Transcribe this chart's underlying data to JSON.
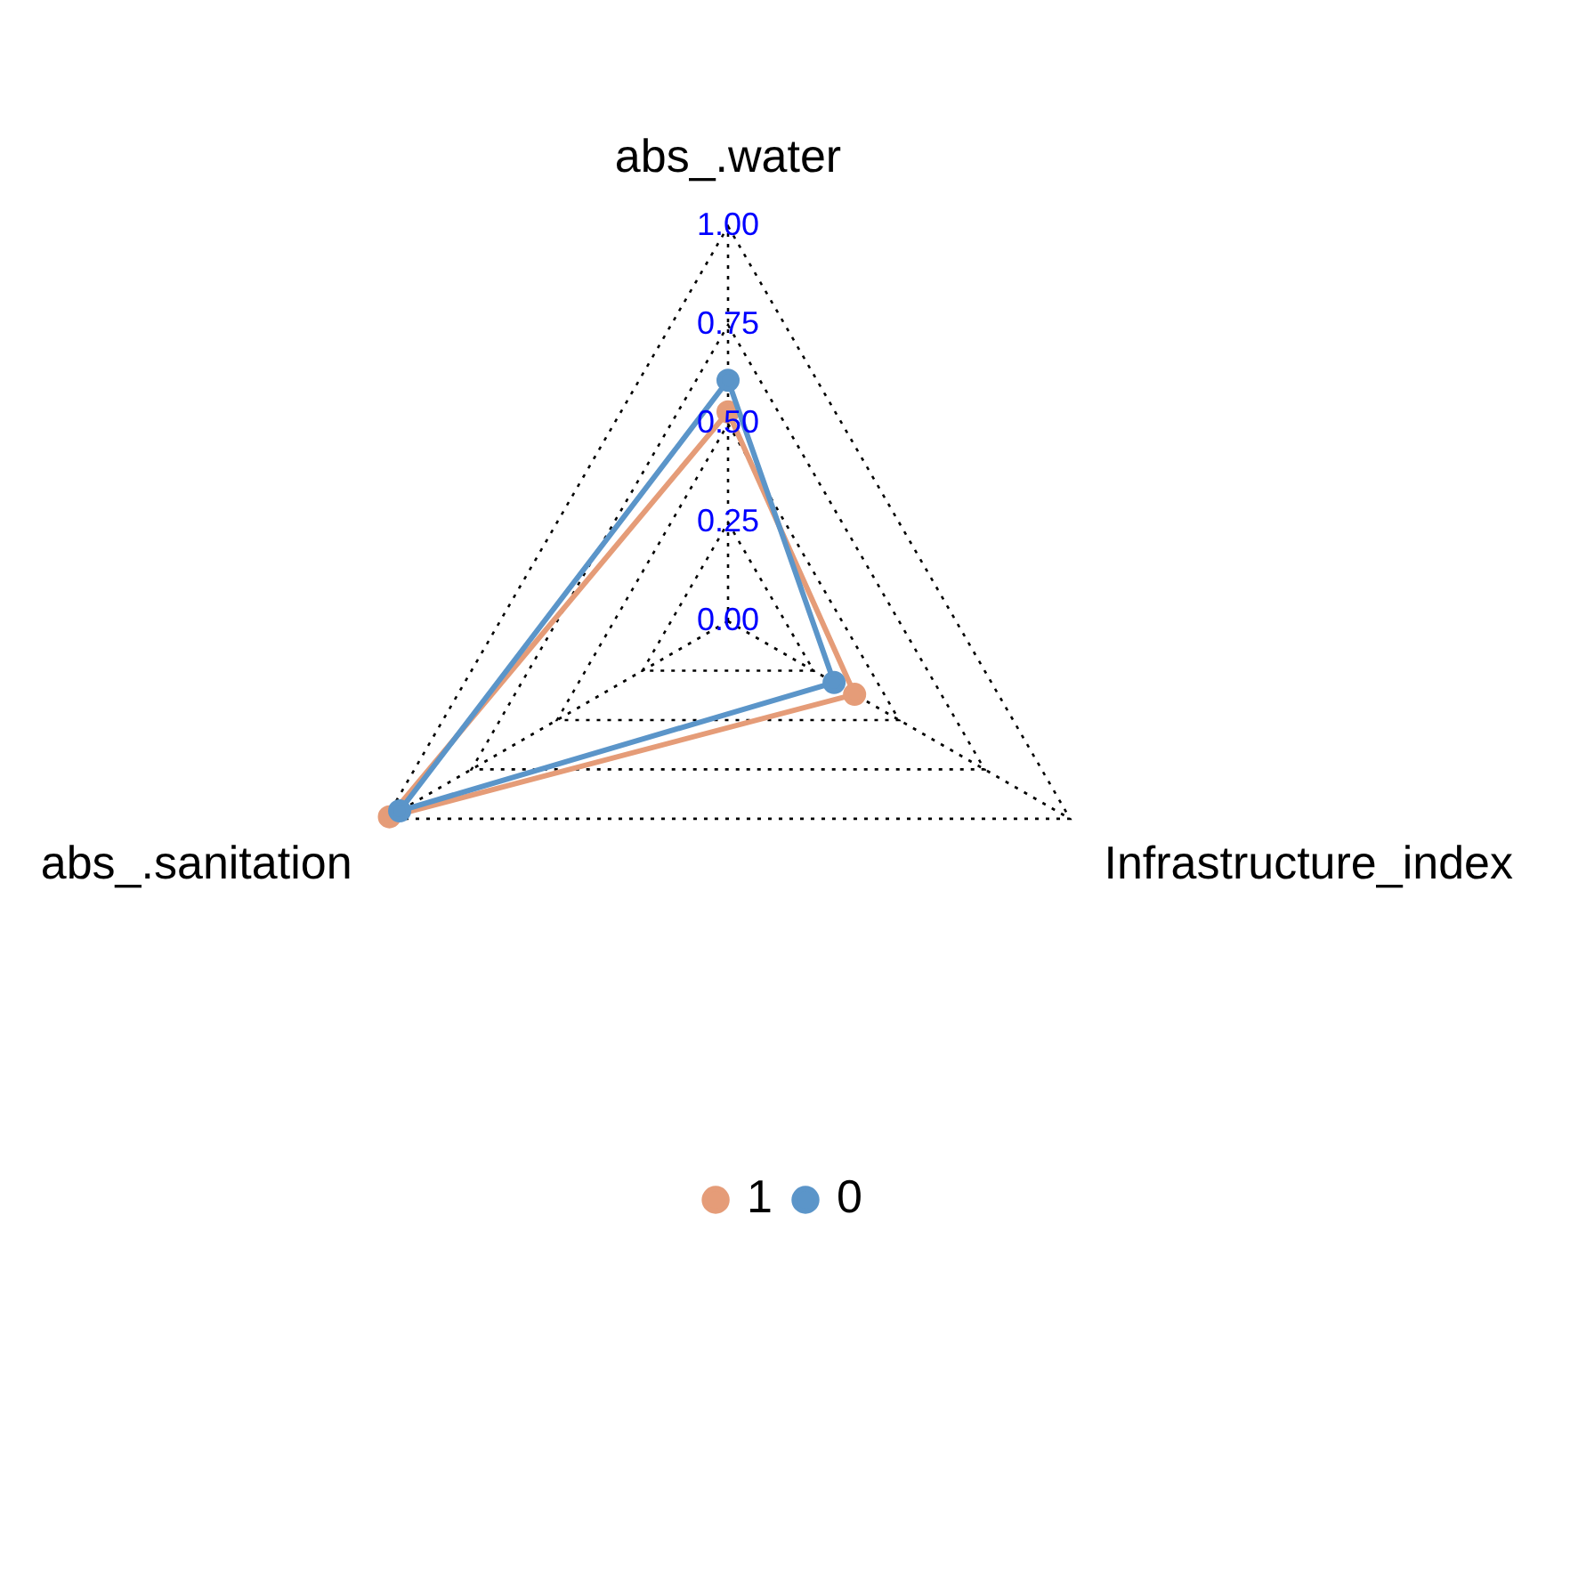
{
  "chart_data": {
    "type": "radar",
    "categories": [
      "abs_.water",
      "Infrastructure_index",
      "abs_.sanitation"
    ],
    "series": [
      {
        "name": "1",
        "color": "#e59c78",
        "values": [
          0.53,
          0.37,
          0.99
        ]
      },
      {
        "name": "0",
        "color": "#5b95c9",
        "values": [
          0.61,
          0.31,
          0.96
        ]
      }
    ],
    "ylim": [
      0,
      1
    ],
    "yticks": [
      {
        "value": 0,
        "label": "0.00"
      },
      {
        "value": 0.25,
        "label": "0.25"
      },
      {
        "value": 0.5,
        "label": "0.50"
      },
      {
        "value": 0.75,
        "label": "0.75"
      },
      {
        "value": 1,
        "label": "1.00"
      }
    ],
    "grid": true,
    "legend": "bottom",
    "marker": "circle"
  }
}
